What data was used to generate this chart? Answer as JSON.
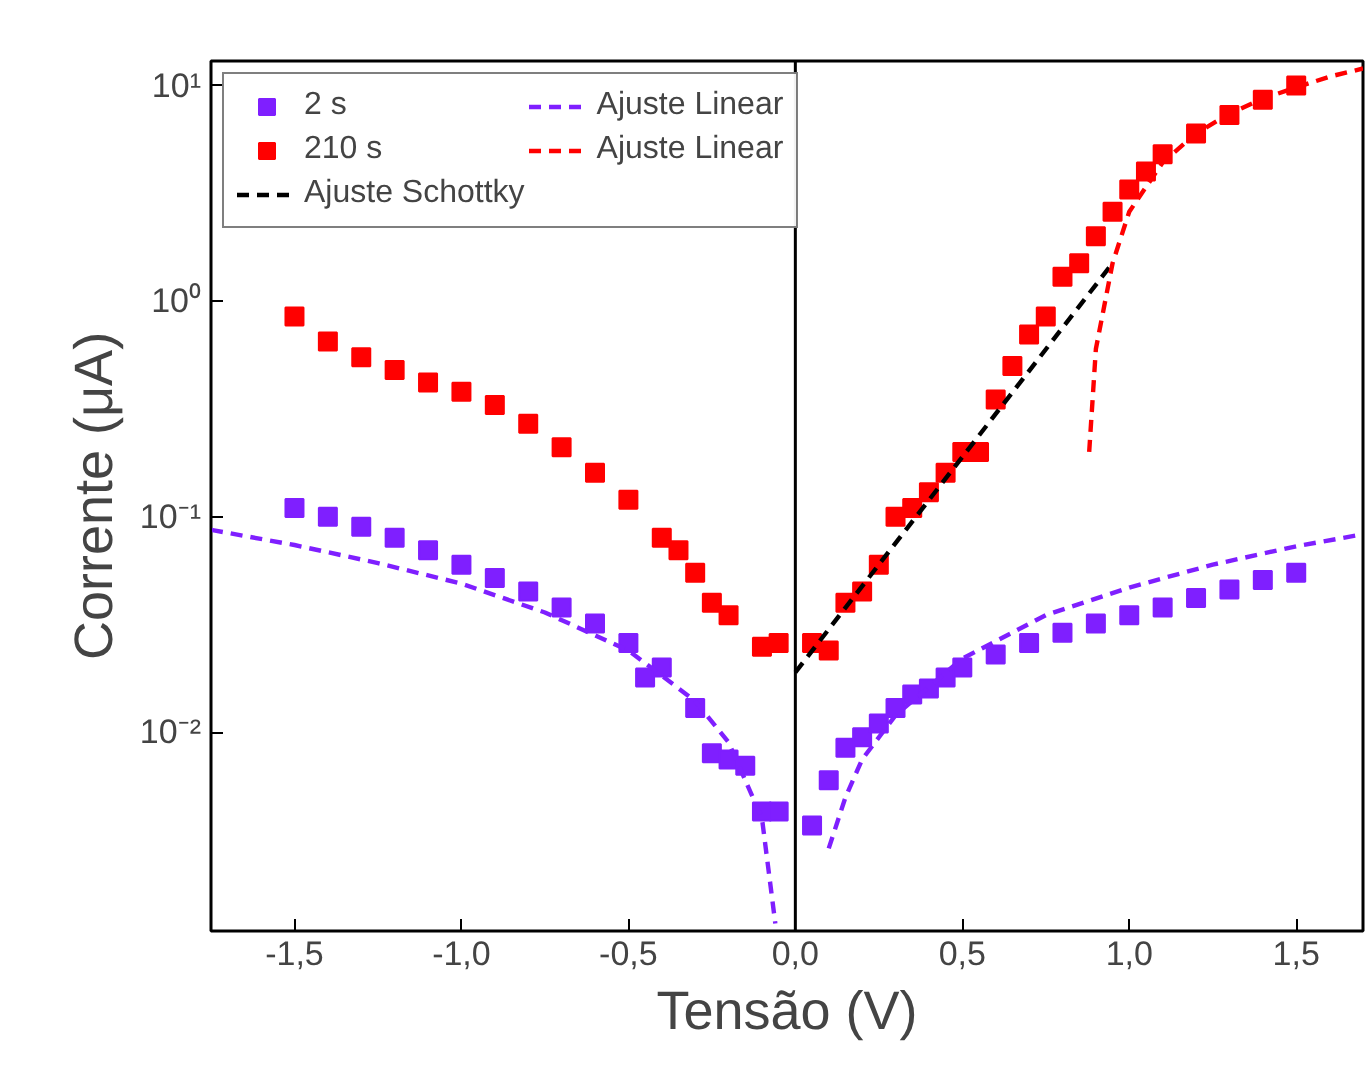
{
  "chart_data": {
    "type": "scatter",
    "xlabel": "Tensão (V)",
    "ylabel": "Corrente (μA)",
    "log": "y",
    "grid": false,
    "legend": "top left",
    "xlim": [
      -1.75,
      1.7
    ],
    "ylim": [
      0.0012,
      13
    ],
    "xticks": [
      {
        "value": -1.5,
        "label": "-1,5"
      },
      {
        "value": -1.0,
        "label": "-1,0"
      },
      {
        "value": -0.5,
        "label": "-0,5"
      },
      {
        "value": 0.0,
        "label": "0,0"
      },
      {
        "value": 0.5,
        "label": "0,5"
      },
      {
        "value": 1.0,
        "label": "1,0"
      },
      {
        "value": 1.5,
        "label": "1,5"
      }
    ],
    "yticks": [
      {
        "value": 0.01,
        "label": "10⁻²"
      },
      {
        "value": 0.1,
        "label": "10⁻¹"
      },
      {
        "value": 1,
        "label": "10⁰"
      },
      {
        "value": 10,
        "label": "10¹"
      }
    ],
    "series": [
      {
        "name": "2 s",
        "marker": "square",
        "color": "#7f1fff",
        "x": [
          -1.5,
          -1.4,
          -1.3,
          -1.2,
          -1.1,
          -1.0,
          -0.9,
          -0.8,
          -0.7,
          -0.6,
          -0.5,
          -0.45,
          -0.4,
          -0.3,
          -0.25,
          -0.2,
          -0.15,
          -0.1,
          -0.05,
          0.05,
          0.1,
          0.15,
          0.2,
          0.25,
          0.3,
          0.35,
          0.4,
          0.45,
          0.5,
          0.6,
          0.7,
          0.8,
          0.9,
          1.0,
          1.1,
          1.2,
          1.3,
          1.4,
          1.5
        ],
        "values": [
          0.11,
          0.1,
          0.09,
          0.08,
          0.07,
          0.06,
          0.052,
          0.045,
          0.038,
          0.032,
          0.026,
          0.018,
          0.02,
          0.013,
          0.008,
          0.0075,
          0.007,
          0.0043,
          0.0043,
          0.0037,
          0.006,
          0.0085,
          0.0095,
          0.011,
          0.013,
          0.015,
          0.016,
          0.018,
          0.02,
          0.023,
          0.026,
          0.029,
          0.032,
          0.035,
          0.038,
          0.042,
          0.046,
          0.051,
          0.055
        ]
      },
      {
        "name": "210 s",
        "marker": "square",
        "color": "#ff0000",
        "x": [
          -1.5,
          -1.4,
          -1.3,
          -1.2,
          -1.1,
          -1.0,
          -0.9,
          -0.8,
          -0.7,
          -0.6,
          -0.5,
          -0.4,
          -0.35,
          -0.3,
          -0.25,
          -0.2,
          -0.1,
          -0.05,
          0.05,
          0.1,
          0.15,
          0.2,
          0.25,
          0.3,
          0.35,
          0.4,
          0.45,
          0.5,
          0.55,
          0.6,
          0.65,
          0.7,
          0.75,
          0.8,
          0.85,
          0.9,
          0.95,
          1.0,
          1.05,
          1.1,
          1.2,
          1.3,
          1.4,
          1.5
        ],
        "values": [
          0.85,
          0.65,
          0.55,
          0.48,
          0.42,
          0.38,
          0.33,
          0.27,
          0.21,
          0.16,
          0.12,
          0.08,
          0.07,
          0.055,
          0.04,
          0.035,
          0.025,
          0.026,
          0.026,
          0.024,
          0.04,
          0.045,
          0.06,
          0.1,
          0.11,
          0.13,
          0.16,
          0.2,
          0.2,
          0.35,
          0.5,
          0.7,
          0.85,
          1.3,
          1.5,
          2.0,
          2.6,
          3.3,
          4.0,
          4.8,
          6.0,
          7.3,
          8.6,
          10
        ]
      },
      {
        "name": "Ajuste Schottky",
        "type": "line",
        "line_style": "dashed",
        "color": "#000000",
        "x": [
          0.0,
          0.95
        ],
        "values": [
          0.019,
          1.5
        ]
      },
      {
        "name": "Ajuste Linear",
        "type": "line",
        "line_style": "dashed",
        "color": "#7f1fff",
        "x": [
          -1.75,
          -1.5,
          -1.25,
          -1.0,
          -0.75,
          -0.5,
          -0.3,
          -0.2,
          -0.1,
          -0.06,
          null,
          0.1,
          0.15,
          0.2,
          0.3,
          0.5,
          0.75,
          1.0,
          1.25,
          1.5,
          1.7
        ],
        "values": [
          0.087,
          0.074,
          0.061,
          0.049,
          0.036,
          0.024,
          0.014,
          0.009,
          0.004,
          0.0013,
          null,
          0.0029,
          0.005,
          0.0075,
          0.012,
          0.022,
          0.035,
          0.047,
          0.06,
          0.073,
          0.083
        ]
      },
      {
        "name": "Ajuste Linear",
        "type": "line",
        "line_style": "dashed",
        "color": "#ff0000",
        "x": [
          0.88,
          0.9,
          0.95,
          1.0,
          1.1,
          1.2,
          1.3,
          1.4,
          1.5,
          1.6,
          1.7
        ],
        "values": [
          0.2,
          0.6,
          1.5,
          2.6,
          4.4,
          6.0,
          7.4,
          8.7,
          9.8,
          11,
          12
        ]
      }
    ],
    "ref_lines": [
      {
        "axis": "x",
        "value": 0,
        "color": "#000000"
      }
    ]
  }
}
